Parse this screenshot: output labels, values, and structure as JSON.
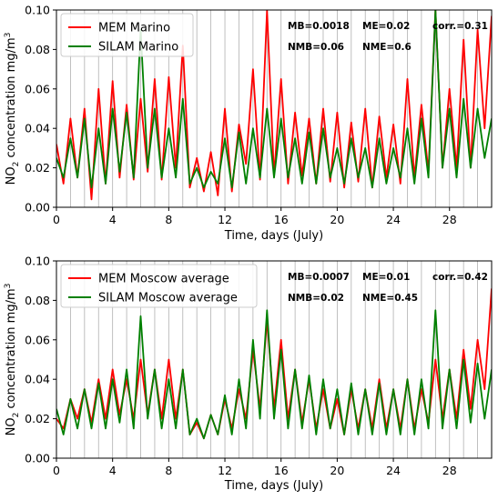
{
  "chart_data": [
    {
      "type": "line",
      "xlabel": "Time, days (July)",
      "ylabel": {
        "prefix": "NO",
        "sub": "2",
        "middle": " concentration mg/m",
        "sup": "3"
      },
      "xlim": [
        0,
        31
      ],
      "ylim": [
        0,
        0.1
      ],
      "xticks": [
        0,
        4,
        8,
        12,
        16,
        20,
        24,
        28
      ],
      "yticks": [
        0.0,
        0.02,
        0.04,
        0.06,
        0.08,
        0.1
      ],
      "ytick_labels": [
        "0.00",
        "0.02",
        "0.04",
        "0.06",
        "0.08",
        "0.10"
      ],
      "grid": "vertical",
      "legend_position": "top-left",
      "stats": [
        "MB=0.0018",
        "ME=0.02",
        "corr.=0.31",
        "NMB=0.06",
        "NME=0.6"
      ],
      "series": [
        {
          "name": "MEM Marino",
          "color": "#ff0000",
          "x": [
            0,
            0.5,
            1,
            1.5,
            2,
            2.5,
            3,
            3.5,
            4,
            4.5,
            5,
            5.5,
            6,
            6.5,
            7,
            7.5,
            8,
            8.5,
            9,
            9.5,
            10,
            10.5,
            11,
            11.5,
            12,
            12.5,
            13,
            13.5,
            14,
            14.5,
            15,
            15.5,
            16,
            16.5,
            17,
            17.5,
            18,
            18.5,
            19,
            19.5,
            20,
            20.5,
            21,
            21.5,
            22,
            22.5,
            23,
            23.5,
            24,
            24.5,
            25,
            25.5,
            26,
            26.5,
            27,
            27.5,
            28,
            28.5,
            29,
            29.5,
            30,
            30.5,
            31
          ],
          "values": [
            0.032,
            0.012,
            0.045,
            0.015,
            0.05,
            0.004,
            0.06,
            0.012,
            0.064,
            0.015,
            0.052,
            0.014,
            0.055,
            0.018,
            0.065,
            0.014,
            0.066,
            0.02,
            0.082,
            0.01,
            0.025,
            0.008,
            0.028,
            0.006,
            0.05,
            0.008,
            0.042,
            0.022,
            0.07,
            0.014,
            0.1,
            0.016,
            0.065,
            0.012,
            0.048,
            0.016,
            0.045,
            0.012,
            0.05,
            0.013,
            0.048,
            0.01,
            0.043,
            0.013,
            0.05,
            0.01,
            0.046,
            0.015,
            0.042,
            0.012,
            0.065,
            0.015,
            0.052,
            0.018,
            0.1,
            0.02,
            0.06,
            0.02,
            0.085,
            0.02,
            0.09,
            0.04,
            0.097
          ]
        },
        {
          "name": "SILAM Marino",
          "color": "#008000",
          "x": [
            0,
            0.5,
            1,
            1.5,
            2,
            2.5,
            3,
            3.5,
            4,
            4.5,
            5,
            5.5,
            6,
            6.5,
            7,
            7.5,
            8,
            8.5,
            9,
            9.5,
            10,
            10.5,
            11,
            11.5,
            12,
            12.5,
            13,
            13.5,
            14,
            14.5,
            15,
            15.5,
            16,
            16.5,
            17,
            17.5,
            18,
            18.5,
            19,
            19.5,
            20,
            20.5,
            21,
            21.5,
            22,
            22.5,
            23,
            23.5,
            24,
            24.5,
            25,
            25.5,
            26,
            26.5,
            27,
            27.5,
            28,
            28.5,
            29,
            29.5,
            30,
            30.5,
            31
          ],
          "values": [
            0.025,
            0.015,
            0.035,
            0.015,
            0.045,
            0.01,
            0.04,
            0.012,
            0.05,
            0.018,
            0.048,
            0.015,
            0.09,
            0.02,
            0.05,
            0.015,
            0.04,
            0.015,
            0.055,
            0.012,
            0.02,
            0.01,
            0.018,
            0.012,
            0.035,
            0.01,
            0.038,
            0.012,
            0.04,
            0.015,
            0.05,
            0.015,
            0.045,
            0.015,
            0.035,
            0.012,
            0.038,
            0.012,
            0.04,
            0.015,
            0.03,
            0.012,
            0.035,
            0.015,
            0.03,
            0.01,
            0.035,
            0.012,
            0.03,
            0.015,
            0.04,
            0.012,
            0.045,
            0.015,
            0.1,
            0.02,
            0.05,
            0.015,
            0.055,
            0.02,
            0.05,
            0.025,
            0.045
          ]
        }
      ]
    },
    {
      "type": "line",
      "xlabel": "Time, days (July)",
      "ylabel": {
        "prefix": "NO",
        "sub": "2",
        "middle": " concentration mg/m",
        "sup": "3"
      },
      "xlim": [
        0,
        31
      ],
      "ylim": [
        0,
        0.1
      ],
      "xticks": [
        0,
        4,
        8,
        12,
        16,
        20,
        24,
        28
      ],
      "yticks": [
        0.0,
        0.02,
        0.04,
        0.06,
        0.08,
        0.1
      ],
      "ytick_labels": [
        "0.00",
        "0.02",
        "0.04",
        "0.06",
        "0.08",
        "0.10"
      ],
      "grid": "vertical",
      "legend_position": "top-left",
      "stats": [
        "MB=0.0007",
        "ME=0.01",
        "corr.=0.42",
        "NMB=0.02",
        "NME=0.45"
      ],
      "series": [
        {
          "name": "MEM Moscow average",
          "color": "#ff0000",
          "x": [
            0,
            0.5,
            1,
            1.5,
            2,
            2.5,
            3,
            3.5,
            4,
            4.5,
            5,
            5.5,
            6,
            6.5,
            7,
            7.5,
            8,
            8.5,
            9,
            9.5,
            10,
            10.5,
            11,
            11.5,
            12,
            12.5,
            13,
            13.5,
            14,
            14.5,
            15,
            15.5,
            16,
            16.5,
            17,
            17.5,
            18,
            18.5,
            19,
            19.5,
            20,
            20.5,
            21,
            21.5,
            22,
            22.5,
            23,
            23.5,
            24,
            24.5,
            25,
            25.5,
            26,
            26.5,
            27,
            27.5,
            28,
            28.5,
            29,
            29.5,
            30,
            30.5,
            31
          ],
          "values": [
            0.02,
            0.015,
            0.03,
            0.02,
            0.035,
            0.018,
            0.04,
            0.02,
            0.045,
            0.022,
            0.04,
            0.02,
            0.05,
            0.022,
            0.045,
            0.02,
            0.05,
            0.02,
            0.045,
            0.012,
            0.018,
            0.01,
            0.022,
            0.012,
            0.03,
            0.015,
            0.035,
            0.02,
            0.055,
            0.025,
            0.07,
            0.025,
            0.06,
            0.02,
            0.045,
            0.018,
            0.04,
            0.015,
            0.035,
            0.015,
            0.03,
            0.012,
            0.035,
            0.015,
            0.035,
            0.015,
            0.04,
            0.015,
            0.035,
            0.015,
            0.04,
            0.015,
            0.035,
            0.018,
            0.05,
            0.02,
            0.045,
            0.02,
            0.055,
            0.025,
            0.06,
            0.035,
            0.086
          ]
        },
        {
          "name": "SILAM Moscow average",
          "color": "#008000",
          "x": [
            0,
            0.5,
            1,
            1.5,
            2,
            2.5,
            3,
            3.5,
            4,
            4.5,
            5,
            5.5,
            6,
            6.5,
            7,
            7.5,
            8,
            8.5,
            9,
            9.5,
            10,
            10.5,
            11,
            11.5,
            12,
            12.5,
            13,
            13.5,
            14,
            14.5,
            15,
            15.5,
            16,
            16.5,
            17,
            17.5,
            18,
            18.5,
            19,
            19.5,
            20,
            20.5,
            21,
            21.5,
            22,
            22.5,
            23,
            23.5,
            24,
            24.5,
            25,
            25.5,
            26,
            26.5,
            27,
            27.5,
            28,
            28.5,
            29,
            29.5,
            30,
            30.5,
            31
          ],
          "values": [
            0.025,
            0.012,
            0.03,
            0.015,
            0.035,
            0.015,
            0.038,
            0.015,
            0.04,
            0.018,
            0.045,
            0.015,
            0.072,
            0.02,
            0.045,
            0.015,
            0.04,
            0.015,
            0.045,
            0.012,
            0.02,
            0.01,
            0.022,
            0.012,
            0.032,
            0.012,
            0.04,
            0.015,
            0.06,
            0.02,
            0.075,
            0.02,
            0.055,
            0.015,
            0.045,
            0.015,
            0.042,
            0.012,
            0.04,
            0.015,
            0.035,
            0.012,
            0.038,
            0.012,
            0.035,
            0.012,
            0.038,
            0.012,
            0.035,
            0.012,
            0.04,
            0.012,
            0.04,
            0.015,
            0.075,
            0.015,
            0.045,
            0.015,
            0.05,
            0.018,
            0.048,
            0.02,
            0.045
          ]
        }
      ]
    }
  ]
}
